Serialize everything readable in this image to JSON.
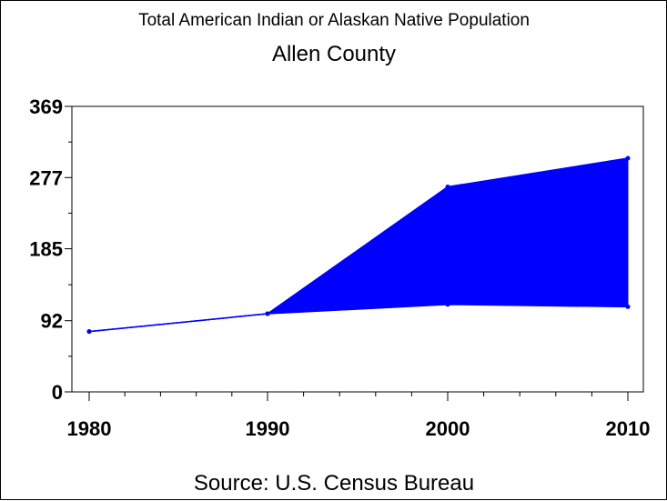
{
  "chart_data": {
    "type": "area",
    "title": "Total American Indian or Alaskan Native Population",
    "subtitle": "Allen County",
    "source": "Source: U.S. Census Bureau",
    "xlabel": "",
    "ylabel": "",
    "x": [
      1980,
      1990,
      2000,
      2010
    ],
    "x_tick_labels": [
      "1980",
      "1990",
      "2000",
      "2010"
    ],
    "y_tick_labels": [
      "0",
      "92",
      "185",
      "277",
      "369"
    ],
    "y_ticks": [
      0,
      92,
      185,
      277,
      369
    ],
    "ylim": [
      0,
      369
    ],
    "xlim": [
      1980,
      2010
    ],
    "series": [
      {
        "values": [
          78,
          101,
          113,
          110
        ],
        "color": "#0000ff"
      },
      {
        "values": [
          78,
          101,
          265,
          302
        ],
        "color": "#0000ff"
      }
    ],
    "fill_between_series": true,
    "fill_color": "#0000ff",
    "grid": false
  }
}
